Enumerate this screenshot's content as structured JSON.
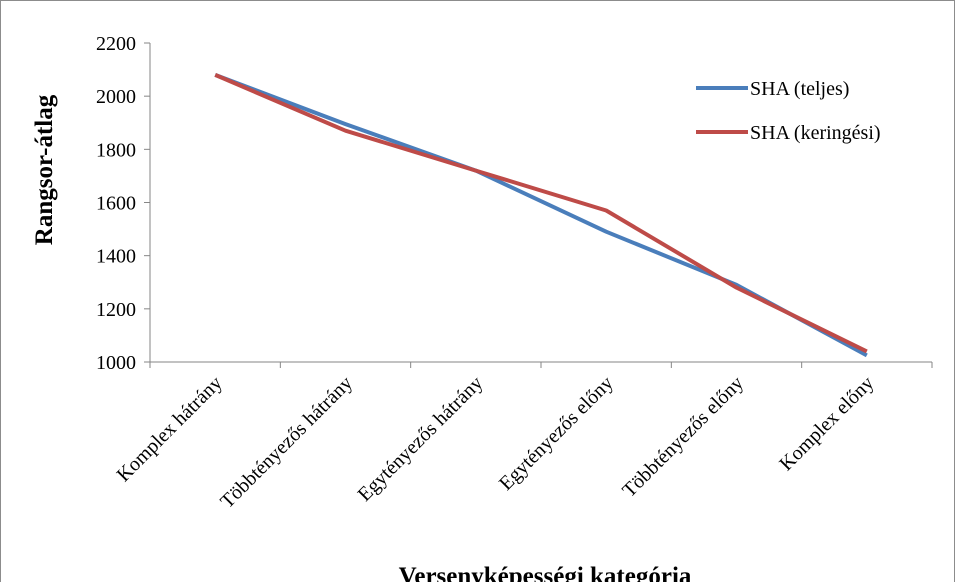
{
  "chart_data": {
    "type": "line",
    "title": "",
    "xlabel": "Versenyképességi kategória",
    "ylabel": "Rangsor-átlag",
    "categories": [
      "Komplex hátrány",
      "Többtényezős hátrány",
      "Egytényezős hátrány",
      "Egytényezős előny",
      "Többtényezős előny",
      "Komplex előny"
    ],
    "series": [
      {
        "name": "SHA (teljes)",
        "color": "#4a7ebb",
        "values": [
          2080,
          1895,
          1720,
          1490,
          1290,
          1025
        ]
      },
      {
        "name": "SHA (keringési)",
        "color": "#be4b48",
        "values": [
          2080,
          1870,
          1720,
          1570,
          1280,
          1040
        ]
      }
    ],
    "ylim": [
      1000,
      2200
    ],
    "yticks": [
      "1000",
      "1200",
      "1400",
      "1600",
      "1800",
      "2000",
      "2200"
    ],
    "grid": false,
    "legend_position": "top-right"
  }
}
